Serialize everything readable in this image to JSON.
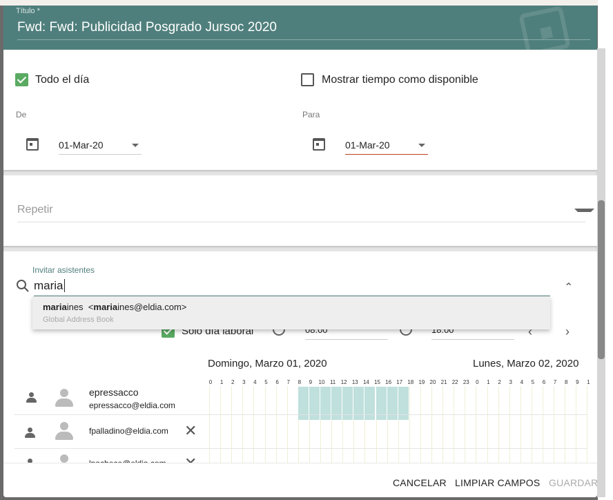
{
  "header": {
    "title_label": "Título *",
    "title_value": "Fwd: Fwd: Publicidad Posgrado Jursoc 2020",
    "color": "#4f7f7c"
  },
  "options": {
    "all_day": {
      "label": "Todo el día",
      "checked": true
    },
    "show_free": {
      "label": "Mostrar tiempo como disponible",
      "checked": false
    }
  },
  "from": {
    "label": "De",
    "date": "01-Mar-20"
  },
  "to": {
    "label": "Para",
    "date": "01-Mar-20"
  },
  "repeat": {
    "placeholder": "Repetir"
  },
  "attendees": {
    "label": "Invitar asistentes",
    "query": "maria",
    "suggestion": {
      "match": "maria",
      "rest": "ines",
      "email_open": "<",
      "email_match": "maria",
      "email_rest": "ines@eldia.com>",
      "source": "Global Address Book"
    },
    "workday_only": {
      "label": "Sólo día laboral",
      "checked": true
    },
    "start_time": "08:00",
    "end_time": "18:00"
  },
  "schedule": {
    "day1": "Domingo, Marzo 01, 2020",
    "day2": "Lunes, Marzo 02, 2020",
    "hours": [
      "0",
      "1",
      "2",
      "3",
      "4",
      "5",
      "6",
      "7",
      "8",
      "9",
      "10",
      "11",
      "12",
      "13",
      "14",
      "15",
      "16",
      "17",
      "18",
      "19",
      "20",
      "21",
      "22",
      "23",
      "0",
      "1",
      "2",
      "3",
      "4",
      "5",
      "6",
      "7",
      "8",
      "9",
      "1"
    ],
    "busy": {
      "from_hour": 8,
      "to_hour": 18
    }
  },
  "people": [
    {
      "name": "epressacco",
      "email": "epressacco@eldia.com",
      "type": "organizer",
      "removable": false
    },
    {
      "name": "",
      "email": "fpalladino@eldia.com",
      "type": "attendee",
      "removable": true
    },
    {
      "name": "",
      "email": "lpachece@eldia.com",
      "type": "attendee",
      "removable": true
    }
  ],
  "footer": {
    "cancel": "CANCELAR",
    "clear": "LIMPIAR CAMPOS",
    "save": "GUARDAR"
  }
}
